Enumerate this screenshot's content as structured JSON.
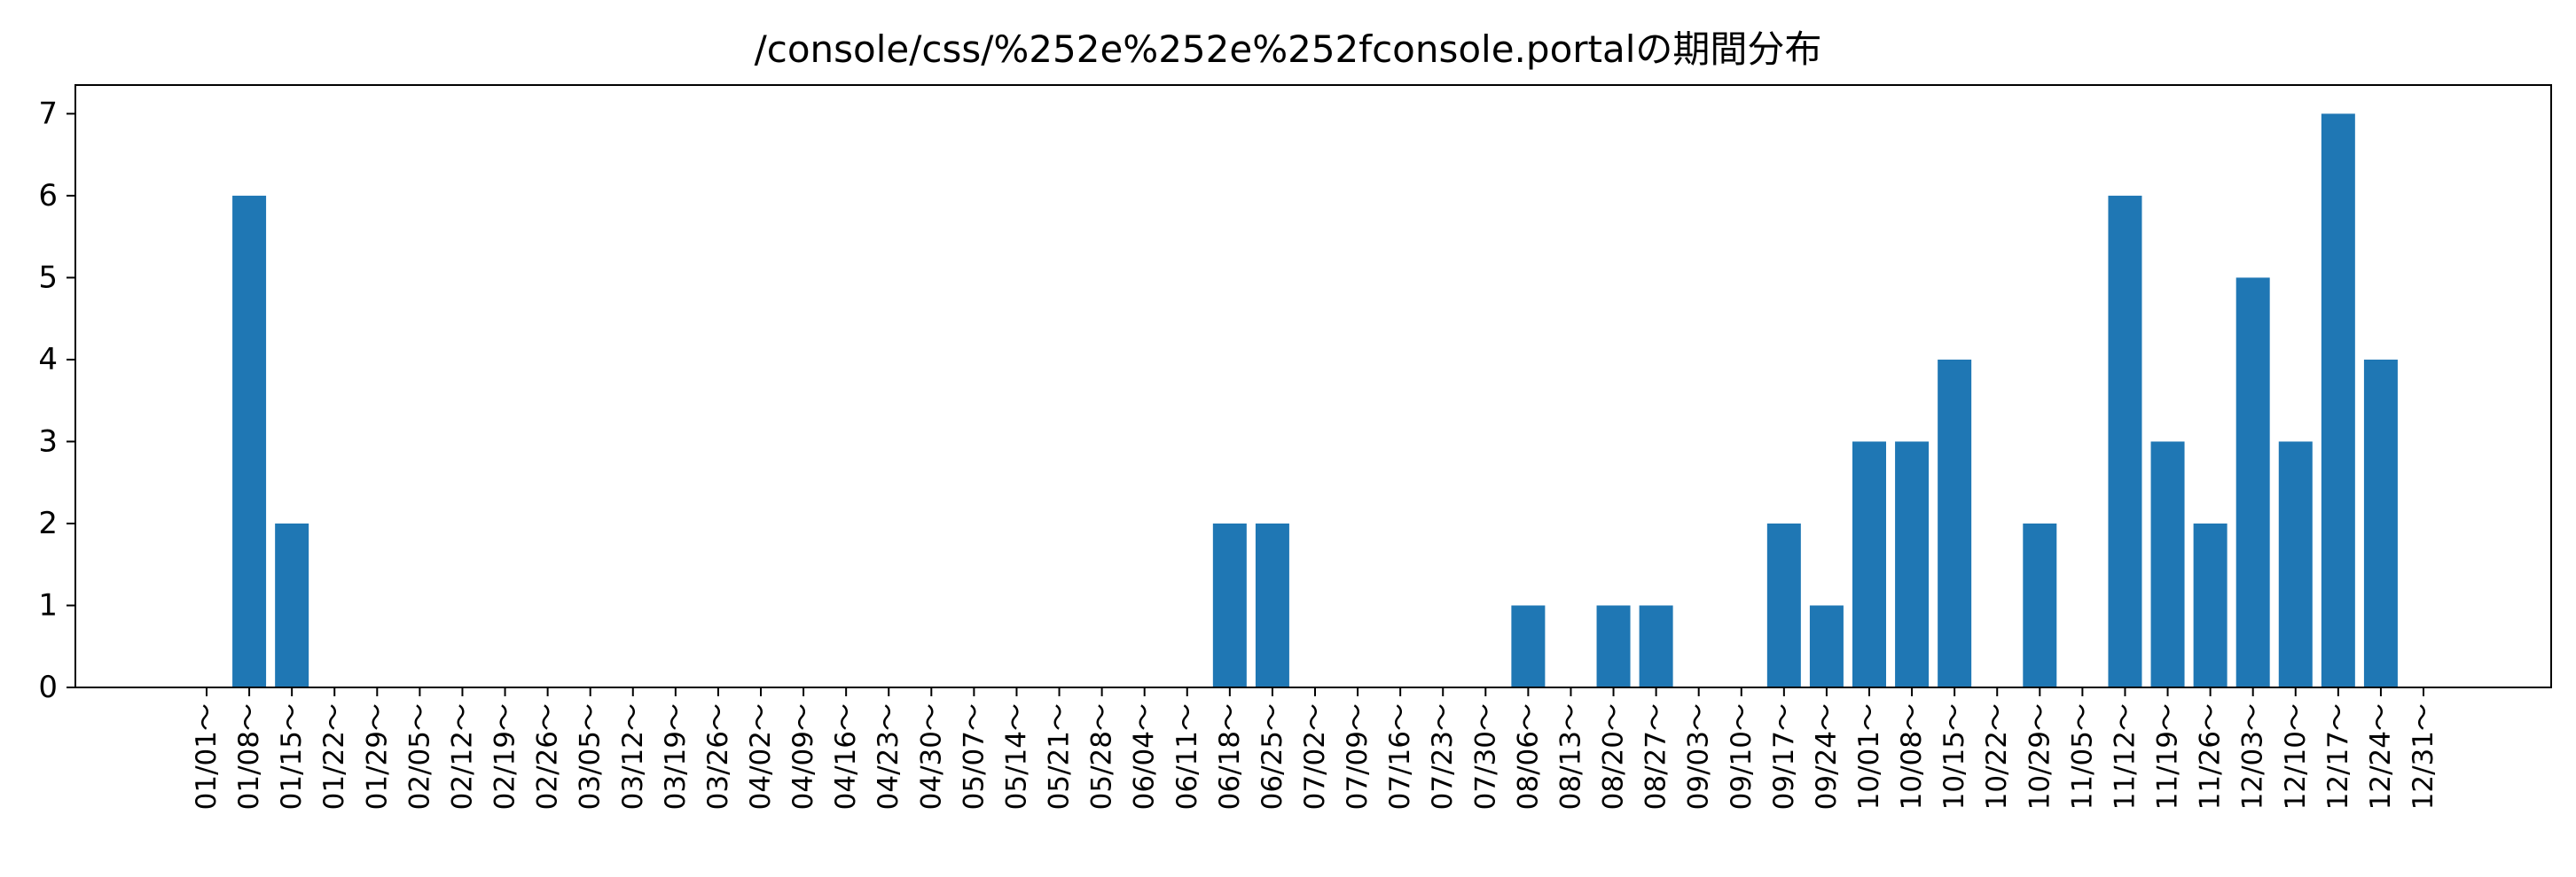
{
  "chart_data": {
    "type": "bar",
    "title": "/console/css/%252e%252e%252fconsole.portalの期間分布",
    "xlabel": "",
    "ylabel": "",
    "ylim": [
      0,
      7.35
    ],
    "yticks": [
      0,
      1,
      2,
      3,
      4,
      5,
      6,
      7
    ],
    "grid": false,
    "legend": "none",
    "bar_color": "#1f77b4",
    "categories": [
      "01/01～",
      "01/08～",
      "01/15～",
      "01/22～",
      "01/29～",
      "02/05～",
      "02/12～",
      "02/19～",
      "02/26～",
      "03/05～",
      "03/12～",
      "03/19～",
      "03/26～",
      "04/02～",
      "04/09～",
      "04/16～",
      "04/23～",
      "04/30～",
      "05/07～",
      "05/14～",
      "05/21～",
      "05/28～",
      "06/04～",
      "06/11～",
      "06/18～",
      "06/25～",
      "07/02～",
      "07/09～",
      "07/16～",
      "07/23～",
      "07/30～",
      "08/06～",
      "08/13～",
      "08/20～",
      "08/27～",
      "09/03～",
      "09/10～",
      "09/17～",
      "09/24～",
      "10/01～",
      "10/08～",
      "10/15～",
      "10/22～",
      "10/29～",
      "11/05～",
      "11/12～",
      "11/19～",
      "11/26～",
      "12/03～",
      "12/10～",
      "12/17～",
      "12/24～",
      "12/31～"
    ],
    "values": [
      0,
      6,
      2,
      0,
      0,
      0,
      0,
      0,
      0,
      0,
      0,
      0,
      0,
      0,
      0,
      0,
      0,
      0,
      0,
      0,
      0,
      0,
      0,
      0,
      2,
      2,
      0,
      0,
      0,
      0,
      0,
      1,
      0,
      1,
      1,
      0,
      0,
      2,
      1,
      3,
      3,
      4,
      0,
      2,
      0,
      6,
      3,
      2,
      5,
      3,
      7,
      4,
      0
    ]
  }
}
